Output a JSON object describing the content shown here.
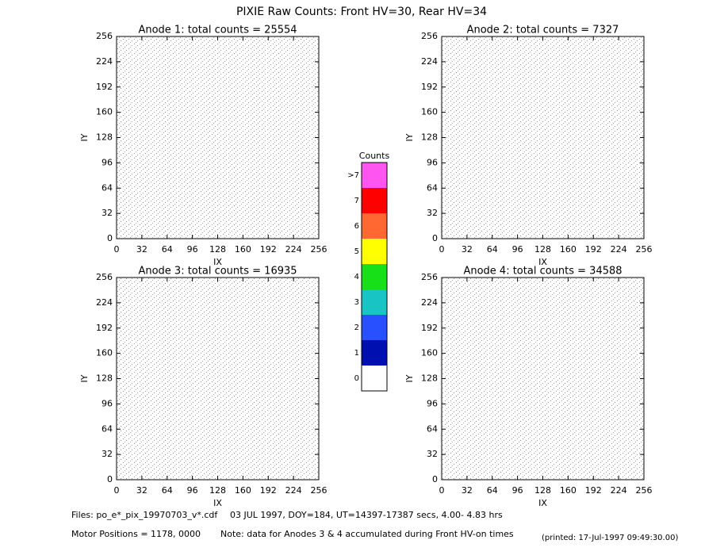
{
  "title": "PIXIE Raw Counts:  Front HV=30, Rear HV=34",
  "chart_data": [
    {
      "type": "heatmap",
      "title": "Anode 1: total counts = 25554",
      "x_label": "IX",
      "y_label": "IY",
      "xlim": [
        0,
        256
      ],
      "ylim": [
        0,
        256
      ],
      "xticks": [
        0,
        32,
        64,
        96,
        128,
        160,
        192,
        224,
        256
      ],
      "yticks": [
        0,
        32,
        64,
        96,
        128,
        160,
        192,
        224,
        256
      ]
    },
    {
      "type": "heatmap",
      "title": "Anode 2: total counts = 7327",
      "x_label": "IX",
      "y_label": "IY",
      "xlim": [
        0,
        256
      ],
      "ylim": [
        0,
        256
      ],
      "xticks": [
        0,
        32,
        64,
        96,
        128,
        160,
        192,
        224,
        256
      ],
      "yticks": [
        0,
        32,
        64,
        96,
        128,
        160,
        192,
        224,
        256
      ]
    },
    {
      "type": "heatmap",
      "title": "Anode 3: total counts = 16935",
      "x_label": "IX",
      "y_label": "IY",
      "xlim": [
        0,
        256
      ],
      "ylim": [
        0,
        256
      ],
      "xticks": [
        0,
        32,
        64,
        96,
        128,
        160,
        192,
        224,
        256
      ],
      "yticks": [
        0,
        32,
        64,
        96,
        128,
        160,
        192,
        224,
        256
      ]
    },
    {
      "type": "heatmap",
      "title": "Anode 4: total counts = 34588",
      "x_label": "IX",
      "y_label": "IY",
      "xlim": [
        0,
        256
      ],
      "ylim": [
        0,
        256
      ],
      "xticks": [
        0,
        32,
        64,
        96,
        128,
        160,
        192,
        224,
        256
      ],
      "yticks": [
        0,
        32,
        64,
        96,
        128,
        160,
        192,
        224,
        256
      ]
    }
  ],
  "colorbar": {
    "title": "Counts",
    "ticks": [
      0,
      1,
      2,
      3,
      4,
      5,
      6,
      7,
      {
        "value": 8,
        "label": ">7"
      }
    ],
    "colors": [
      "#ffffff",
      "#0010b0",
      "#2850ff",
      "#18c4c4",
      "#18e018",
      "#ffff00",
      "#ff6830",
      "#ff0000",
      "#ff55f0"
    ]
  },
  "footer": {
    "files": "Files: po_e*_pix_19970703_v*.cdf",
    "dates": "03 JUL 1997, DOY=184, UT=14397-17387 secs,  4.00- 4.83 hrs",
    "motor": "Motor Positions = 1178, 0000",
    "note": "Note: data for Anodes 3 & 4 accumulated during Front HV-on times",
    "printed": "(printed: 17-Jul-1997 09:49:30.00)"
  }
}
